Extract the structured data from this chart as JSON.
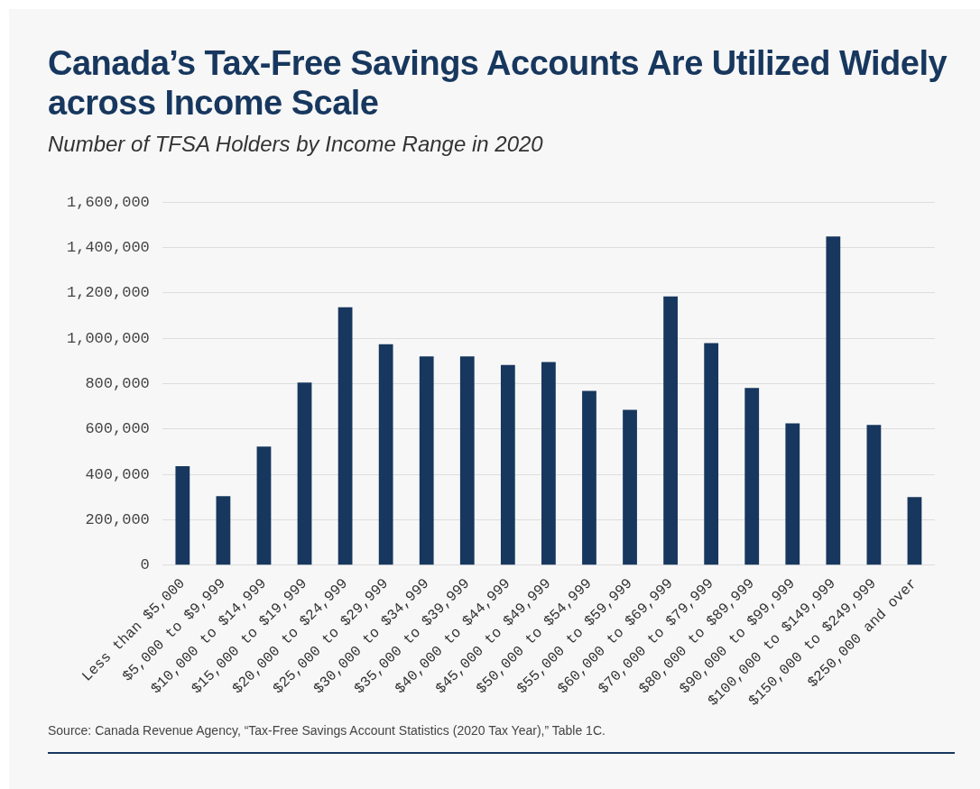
{
  "chart_data": {
    "type": "bar",
    "title": "Canada’s Tax-Free Savings Accounts Are Utilized Widely across Income Scale",
    "subtitle": "Number of TFSA Holders by Income Range in 2020",
    "categories": [
      "Less than $5,000",
      "$5,000 to $9,999",
      "$10,000 to $14,999",
      "$15,000 to $19,999",
      "$20,000 to $24,999",
      "$25,000 to $29,999",
      "$30,000 to $34,999",
      "$35,000 to $39,999",
      "$40,000 to $44,999",
      "$45,000 to $49,999",
      "$50,000 to $54,999",
      "$55,000 to $59,999",
      "$60,000 to $69,999",
      "$70,000 to $79,999",
      "$80,000 to $89,999",
      "$90,000 to $99,999",
      "$100,000 to $149,999",
      "$150,000 to $249,999",
      "$250,000 and over"
    ],
    "values": [
      436000,
      304000,
      522000,
      805000,
      1137000,
      974000,
      920000,
      920000,
      882000,
      895000,
      768000,
      684000,
      1184000,
      979000,
      781000,
      625000,
      1449000,
      618000,
      300000
    ],
    "color": "#17375e",
    "ylim": [
      0,
      1600000
    ],
    "yticks": [
      {
        "value": 0,
        "label": "0"
      },
      {
        "value": 200000,
        "label": "200,000"
      },
      {
        "value": 400000,
        "label": "400,000"
      },
      {
        "value": 600000,
        "label": "600,000"
      },
      {
        "value": 800000,
        "label": "800,000"
      },
      {
        "value": 1000000,
        "label": "1,000,000"
      },
      {
        "value": 1200000,
        "label": "1,200,000"
      },
      {
        "value": 1400000,
        "label": "1,400,000"
      },
      {
        "value": 1600000,
        "label": "1,600,000"
      }
    ],
    "grid": "y",
    "annotations": [
      "Source: Canada Revenue Agency, “Tax-Free Savings Account Statistics (2020 Tax Year),” Table 1C."
    ]
  }
}
